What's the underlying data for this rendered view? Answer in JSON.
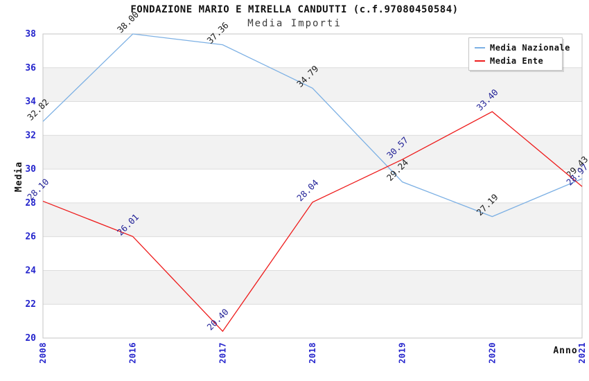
{
  "header": {
    "title": "FONDAZIONE MARIO E MIRELLA CANDUTTI (c.f.97080450584)",
    "subtitle": "Media Importi"
  },
  "legend": {
    "position": "top-right",
    "entries": [
      {
        "label": "Media Nazionale",
        "color": "#7cb0e4"
      },
      {
        "label": "Media Ente",
        "color": "#ee1c1c"
      }
    ]
  },
  "chart_data": {
    "type": "line",
    "title": "FONDAZIONE MARIO E MIRELLA CANDUTTI (c.f.97080450584)",
    "subtitle": "Media Importi",
    "xlabel": "Anno",
    "ylabel": "Media",
    "categories": [
      "2008",
      "2016",
      "2017",
      "2018",
      "2019",
      "2020",
      "2021"
    ],
    "series": [
      {
        "name": "Media Nazionale",
        "color": "#7cb0e4",
        "label_color": "#1c1c1c",
        "values": [
          32.82,
          38.0,
          37.36,
          34.79,
          29.24,
          27.19,
          29.43
        ]
      },
      {
        "name": "Media Ente",
        "color": "#ee1c1c",
        "label_color": "#1f1f96",
        "values": [
          28.1,
          26.01,
          20.4,
          28.04,
          30.57,
          33.4,
          28.97
        ]
      }
    ],
    "ylim": [
      20,
      38
    ],
    "ytick_step": 2,
    "grid": true,
    "band_colors": [
      "#ffffff",
      "#f2f2f2"
    ],
    "tick_label_color": "#2424cc",
    "axis_label_color": "#111111",
    "plot_border_color": "#c6c6c6",
    "grid_color": "#dcdcdc",
    "legend_position": "top-right"
  }
}
